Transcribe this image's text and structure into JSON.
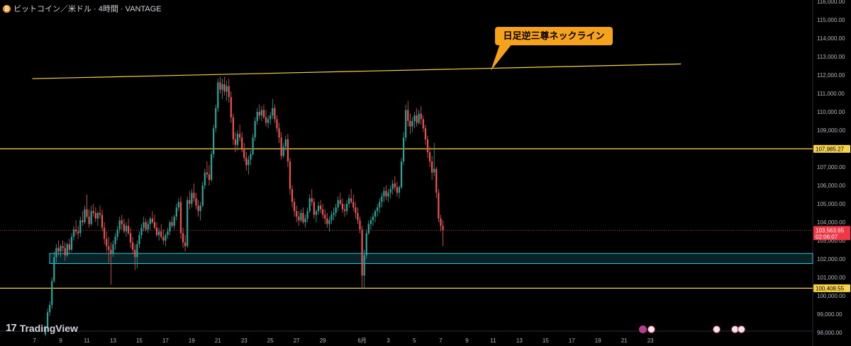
{
  "header": {
    "symbol_icon": "bitcoin-coin-icon",
    "title": "ビットコイン／米ドル · 4時間 · VANTAGE"
  },
  "brand": {
    "logo_mark": "17",
    "name": "TradingView"
  },
  "annotation": {
    "text": "日足逆三尊ネックライン"
  },
  "price_tags": {
    "resistance": "107,985.27",
    "last_price": "103,563.65",
    "countdown": "02:06:07",
    "support": "100,408.55"
  },
  "event_icons": [
    "lightning-icon",
    "us-flag-icon",
    "us-flag-icon",
    "us-flag-icon",
    "us-flag-icon"
  ],
  "colors": {
    "background": "#000000",
    "up_candle": "#26a69a",
    "down_candle": "#ef5350",
    "level_line": "#f7d34a",
    "neckline": "#f7d34a",
    "zone": "#2ec4d6",
    "callout": "#f7a21b",
    "last_price": "#f23645"
  },
  "chart_data": {
    "type": "candlestick",
    "interval": "4時間",
    "ylim": [
      98000,
      116000
    ],
    "y_ticks": [
      "98,000.00",
      "99,000.00",
      "100,000.00",
      "101,000.00",
      "102,000.00",
      "103,000.00",
      "104,000.00",
      "105,000.00",
      "106,000.00",
      "107,000.00",
      "108,000.00",
      "109,000.00",
      "110,000.00",
      "111,000.00",
      "112,000.00",
      "113,000.00",
      "114,000.00",
      "115,000.00",
      "116,000.00"
    ],
    "x_ticks": [
      {
        "label": "7",
        "bar": -5
      },
      {
        "label": "9",
        "bar": 7
      },
      {
        "label": "11",
        "bar": 19
      },
      {
        "label": "13",
        "bar": 31
      },
      {
        "label": "15",
        "bar": 43
      },
      {
        "label": "17",
        "bar": 55
      },
      {
        "label": "19",
        "bar": 67
      },
      {
        "label": "21",
        "bar": 79
      },
      {
        "label": "23",
        "bar": 91
      },
      {
        "label": "25",
        "bar": 103
      },
      {
        "label": "27",
        "bar": 115
      },
      {
        "label": "29",
        "bar": 127
      },
      {
        "label": "6月",
        "bar": 145
      },
      {
        "label": "3",
        "bar": 157
      },
      {
        "label": "5",
        "bar": 169
      },
      {
        "label": "7",
        "bar": 181
      },
      {
        "label": "9",
        "bar": 193
      },
      {
        "label": "11",
        "bar": 205
      },
      {
        "label": "13",
        "bar": 217
      },
      {
        "label": "15",
        "bar": 229
      },
      {
        "label": "17",
        "bar": 241
      },
      {
        "label": "19",
        "bar": 253
      },
      {
        "label": "21",
        "bar": 265
      },
      {
        "label": "23",
        "bar": 277
      }
    ],
    "candles": [
      [
        97900,
        98400,
        97800,
        98300
      ],
      [
        98300,
        99300,
        98200,
        99100
      ],
      [
        99100,
        99700,
        98900,
        99500
      ],
      [
        99500,
        101000,
        99300,
        100800
      ],
      [
        100800,
        102400,
        100700,
        102100
      ],
      [
        102100,
        102800,
        101800,
        102600
      ],
      [
        102600,
        103000,
        102200,
        102400
      ],
      [
        102400,
        102800,
        102100,
        102700
      ],
      [
        102700,
        103000,
        102400,
        102600
      ],
      [
        102600,
        102900,
        101900,
        102200
      ],
      [
        102200,
        102900,
        102100,
        102800
      ],
      [
        102800,
        103100,
        102300,
        102500
      ],
      [
        102500,
        103400,
        102400,
        103200
      ],
      [
        103200,
        103800,
        103000,
        103600
      ],
      [
        103600,
        104100,
        103300,
        103500
      ],
      [
        103500,
        103800,
        103100,
        103400
      ],
      [
        103400,
        104300,
        103200,
        104100
      ],
      [
        104100,
        104600,
        103800,
        104000
      ],
      [
        104000,
        104900,
        103900,
        104700
      ],
      [
        104700,
        105500,
        104200,
        104300
      ],
      [
        104300,
        104700,
        103700,
        103900
      ],
      [
        103900,
        104900,
        103800,
        104600
      ],
      [
        104600,
        105000,
        104300,
        104500
      ],
      [
        104500,
        104800,
        104000,
        104200
      ],
      [
        104200,
        104600,
        103800,
        104500
      ],
      [
        104500,
        104900,
        104200,
        104400
      ],
      [
        104400,
        104700,
        103500,
        103700
      ],
      [
        103700,
        104000,
        102800,
        103100
      ],
      [
        103100,
        103500,
        102400,
        102700
      ],
      [
        102700,
        103200,
        101800,
        102500
      ],
      [
        102500,
        102900,
        100600,
        102300
      ],
      [
        102300,
        103000,
        102100,
        102800
      ],
      [
        102800,
        103400,
        102500,
        103200
      ],
      [
        103200,
        103800,
        103000,
        103600
      ],
      [
        103600,
        104300,
        103400,
        104100
      ],
      [
        104100,
        104400,
        103600,
        103900
      ],
      [
        103900,
        104200,
        103400,
        103500
      ],
      [
        103500,
        104000,
        103200,
        103800
      ],
      [
        103800,
        104200,
        103300,
        103400
      ],
      [
        103400,
        103700,
        102600,
        102900
      ],
      [
        102900,
        103200,
        102300,
        102500
      ],
      [
        102500,
        102800,
        101400,
        102100
      ],
      [
        102100,
        103000,
        101500,
        102800
      ],
      [
        102800,
        103500,
        102600,
        103300
      ],
      [
        103300,
        103900,
        103100,
        103700
      ],
      [
        103700,
        104300,
        103500,
        104000
      ],
      [
        104000,
        104200,
        103500,
        103600
      ],
      [
        103600,
        104100,
        103400,
        103900
      ],
      [
        103900,
        104300,
        103600,
        104200
      ],
      [
        104200,
        104600,
        103900,
        104000
      ],
      [
        104000,
        104400,
        103600,
        103700
      ],
      [
        103700,
        104000,
        103200,
        103300
      ],
      [
        103300,
        103700,
        103000,
        103500
      ],
      [
        103500,
        103900,
        103100,
        103200
      ],
      [
        103200,
        103600,
        102800,
        103000
      ],
      [
        103000,
        103400,
        102700,
        103300
      ],
      [
        103300,
        103700,
        103100,
        103500
      ],
      [
        103500,
        104100,
        103300,
        104000
      ],
      [
        104000,
        104300,
        103700,
        103800
      ],
      [
        103800,
        104400,
        103600,
        104300
      ],
      [
        104300,
        105000,
        104100,
        104800
      ],
      [
        104800,
        105300,
        104600,
        105100
      ],
      [
        105100,
        105400,
        103100,
        103400
      ],
      [
        103400,
        103700,
        102600,
        102900
      ],
      [
        102900,
        103300,
        102400,
        102700
      ],
      [
        102700,
        105400,
        102600,
        105200
      ],
      [
        105200,
        105700,
        104700,
        105000
      ],
      [
        105000,
        105800,
        104800,
        105600
      ],
      [
        105600,
        106100,
        105100,
        105300
      ],
      [
        105300,
        105600,
        104700,
        104900
      ],
      [
        104900,
        105200,
        104300,
        104600
      ],
      [
        104600,
        105100,
        104100,
        104900
      ],
      [
        104900,
        106200,
        104800,
        106000
      ],
      [
        106000,
        106900,
        105800,
        106700
      ],
      [
        106700,
        107300,
        106400,
        106600
      ],
      [
        106600,
        107100,
        106000,
        106300
      ],
      [
        106300,
        107900,
        106200,
        107700
      ],
      [
        107700,
        109300,
        107500,
        109100
      ],
      [
        109100,
        110400,
        108900,
        110200
      ],
      [
        110200,
        111800,
        110000,
        111600
      ],
      [
        111600,
        111900,
        111000,
        111200
      ],
      [
        111200,
        111800,
        110700,
        111500
      ],
      [
        111500,
        111900,
        110900,
        111100
      ],
      [
        111100,
        111700,
        110600,
        111400
      ],
      [
        111400,
        111800,
        110500,
        110800
      ],
      [
        110800,
        111100,
        109400,
        109700
      ],
      [
        109700,
        109900,
        108200,
        108500
      ],
      [
        108500,
        108900,
        107800,
        108200
      ],
      [
        108200,
        109000,
        107900,
        108800
      ],
      [
        108800,
        109300,
        108400,
        108600
      ],
      [
        108600,
        108900,
        107800,
        108000
      ],
      [
        108000,
        108300,
        107300,
        107500
      ],
      [
        107500,
        107800,
        106800,
        107100
      ],
      [
        107100,
        107600,
        106600,
        107400
      ],
      [
        107400,
        107900,
        107100,
        107700
      ],
      [
        107700,
        108800,
        107600,
        108600
      ],
      [
        108600,
        109700,
        108400,
        109500
      ],
      [
        109500,
        110200,
        109300,
        110000
      ],
      [
        110000,
        110400,
        109600,
        109800
      ],
      [
        109800,
        110300,
        109500,
        110100
      ],
      [
        110100,
        110400,
        109600,
        109700
      ],
      [
        109700,
        110100,
        109200,
        109400
      ],
      [
        109400,
        109800,
        109100,
        109600
      ],
      [
        109600,
        110000,
        109300,
        109800
      ],
      [
        109800,
        110700,
        109600,
        110200
      ],
      [
        110200,
        110400,
        109400,
        109600
      ],
      [
        109600,
        109800,
        108900,
        109100
      ],
      [
        109100,
        109400,
        108300,
        108600
      ],
      [
        108600,
        108900,
        107400,
        107600
      ],
      [
        107600,
        108300,
        107500,
        108100
      ],
      [
        108100,
        108700,
        107900,
        108500
      ],
      [
        108500,
        108800,
        107000,
        107300
      ],
      [
        107300,
        107500,
        105500,
        105800
      ],
      [
        105800,
        106000,
        104800,
        105100
      ],
      [
        105100,
        105300,
        104300,
        104600
      ],
      [
        104600,
        104900,
        104000,
        104300
      ],
      [
        104300,
        104600,
        103800,
        104100
      ],
      [
        104100,
        104700,
        104000,
        104500
      ],
      [
        104500,
        104800,
        103900,
        104000
      ],
      [
        104000,
        104400,
        103700,
        104200
      ],
      [
        104200,
        104800,
        104000,
        104600
      ],
      [
        104600,
        105500,
        104500,
        105300
      ],
      [
        105300,
        105800,
        104900,
        105100
      ],
      [
        105100,
        105300,
        104200,
        104400
      ],
      [
        104400,
        104700,
        104000,
        104600
      ],
      [
        104600,
        105100,
        104400,
        104900
      ],
      [
        104900,
        105200,
        104500,
        104700
      ],
      [
        104700,
        105000,
        104200,
        104400
      ],
      [
        104400,
        104700,
        103900,
        104200
      ],
      [
        104200,
        104500,
        103700,
        103900
      ],
      [
        103900,
        104300,
        103500,
        104100
      ],
      [
        104100,
        104600,
        103900,
        104400
      ],
      [
        104400,
        104800,
        104100,
        104500
      ],
      [
        104500,
        105000,
        104300,
        104800
      ],
      [
        104800,
        105400,
        104600,
        105200
      ],
      [
        105200,
        105600,
        104900,
        105000
      ],
      [
        105000,
        105300,
        104500,
        104700
      ],
      [
        104700,
        105000,
        104300,
        104600
      ],
      [
        104600,
        105200,
        104400,
        105000
      ],
      [
        105000,
        105500,
        104800,
        105300
      ],
      [
        105300,
        105800,
        105000,
        105100
      ],
      [
        105100,
        105500,
        104600,
        104800
      ],
      [
        104800,
        105100,
        104200,
        104500
      ],
      [
        104500,
        104800,
        103900,
        104100
      ],
      [
        104100,
        104300,
        103400,
        103600
      ],
      [
        103600,
        103800,
        100400,
        101100
      ],
      [
        101100,
        102500,
        100400,
        102200
      ],
      [
        102200,
        103600,
        102000,
        103400
      ],
      [
        103400,
        104100,
        103300,
        103900
      ],
      [
        103900,
        104300,
        103600,
        104100
      ],
      [
        104100,
        104500,
        103800,
        104300
      ],
      [
        104300,
        104700,
        104000,
        104600
      ],
      [
        104600,
        105000,
        104300,
        104800
      ],
      [
        104800,
        105300,
        104500,
        105100
      ],
      [
        105100,
        105600,
        104800,
        105400
      ],
      [
        105400,
        105900,
        105100,
        105700
      ],
      [
        105700,
        106000,
        105200,
        105400
      ],
      [
        105400,
        105800,
        105100,
        105600
      ],
      [
        105600,
        106000,
        105300,
        105800
      ],
      [
        105800,
        106300,
        105500,
        106100
      ],
      [
        106100,
        106500,
        105700,
        105900
      ],
      [
        105900,
        106200,
        105400,
        105600
      ],
      [
        105600,
        106000,
        105300,
        105900
      ],
      [
        105900,
        107500,
        105800,
        107300
      ],
      [
        107300,
        108900,
        107100,
        108600
      ],
      [
        108600,
        110400,
        108400,
        110100
      ],
      [
        110100,
        110600,
        109200,
        109500
      ],
      [
        109500,
        109900,
        108800,
        109200
      ],
      [
        109200,
        109700,
        108900,
        109500
      ],
      [
        109500,
        110000,
        109100,
        109800
      ],
      [
        109800,
        110200,
        109200,
        109400
      ],
      [
        109400,
        110100,
        109300,
        109900
      ],
      [
        109900,
        110300,
        109300,
        109600
      ],
      [
        109600,
        109800,
        108900,
        109100
      ],
      [
        109100,
        109300,
        108200,
        108500
      ],
      [
        108500,
        108700,
        107500,
        107800
      ],
      [
        107800,
        108100,
        107000,
        107300
      ],
      [
        107300,
        107600,
        106300,
        106700
      ],
      [
        106700,
        108300,
        106500,
        106900
      ],
      [
        106900,
        107000,
        105300,
        105600
      ],
      [
        105600,
        105800,
        104000,
        104200
      ],
      [
        104200,
        104400,
        103500,
        103800
      ],
      [
        103800,
        104100,
        102700,
        103560
      ]
    ],
    "horizontal_levels": [
      {
        "label": "107,985.27",
        "value": 107985.27,
        "color": "#f7d34a"
      },
      {
        "label": "100,408.55",
        "value": 100408.55,
        "color": "#f7d34a"
      }
    ],
    "zone": {
      "from": 101750,
      "to": 102300,
      "color": "#2ec4d6"
    },
    "neckline": {
      "from": {
        "bar": -6,
        "value": 111800
      },
      "to": {
        "bar": 291,
        "value": 112600
      }
    },
    "last_price": 103563.65
  }
}
